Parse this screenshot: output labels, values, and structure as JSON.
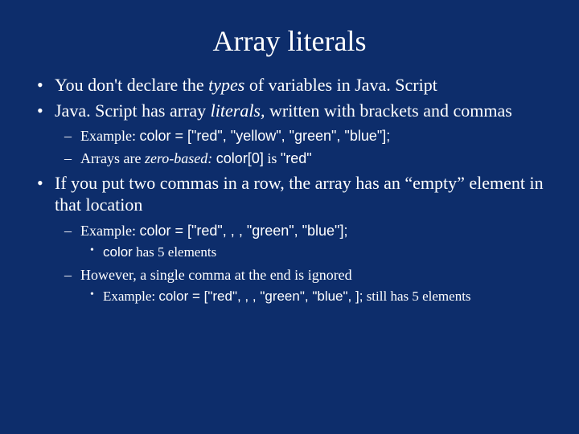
{
  "colors": {
    "background": "#0d2d6b",
    "text": "#ffffff"
  },
  "title": "Array literals",
  "b1_pre": "You don't declare the ",
  "b1_types": "types",
  "b1_post": " of variables in Java. Script",
  "b2_pre": "Java. Script has array ",
  "b2_lit": "literals,",
  "b2_post": " written with brackets and commas",
  "b2s1_pre": "Example: ",
  "b2s1_code": "color = [\"red\", \"yellow\", \"green\", \"blue\"];",
  "b2s2_pre": "Arrays are ",
  "b2s2_zero": "zero-based:",
  "b2s2_sp": " ",
  "b2s2_code1": "color[0]",
  "b2s2_mid": " is ",
  "b2s2_code2": "\"red\"",
  "b3_text": "If you put two commas in a row, the array has an “empty” element in that location",
  "b3s1_pre": "Example: ",
  "b3s1_code": "color = [\"red\", , , \"green\", \"blue\"];",
  "b3s1a_code": "color",
  "b3s1a_post": " has 5 elements",
  "b3s2_text": "However, a single comma at the end is ignored",
  "b3s2a_pre": "Example: ",
  "b3s2a_code": "color = [\"red\", , , \"green\", \"blue\", ];",
  "b3s2a_post": " still has 5 elements"
}
